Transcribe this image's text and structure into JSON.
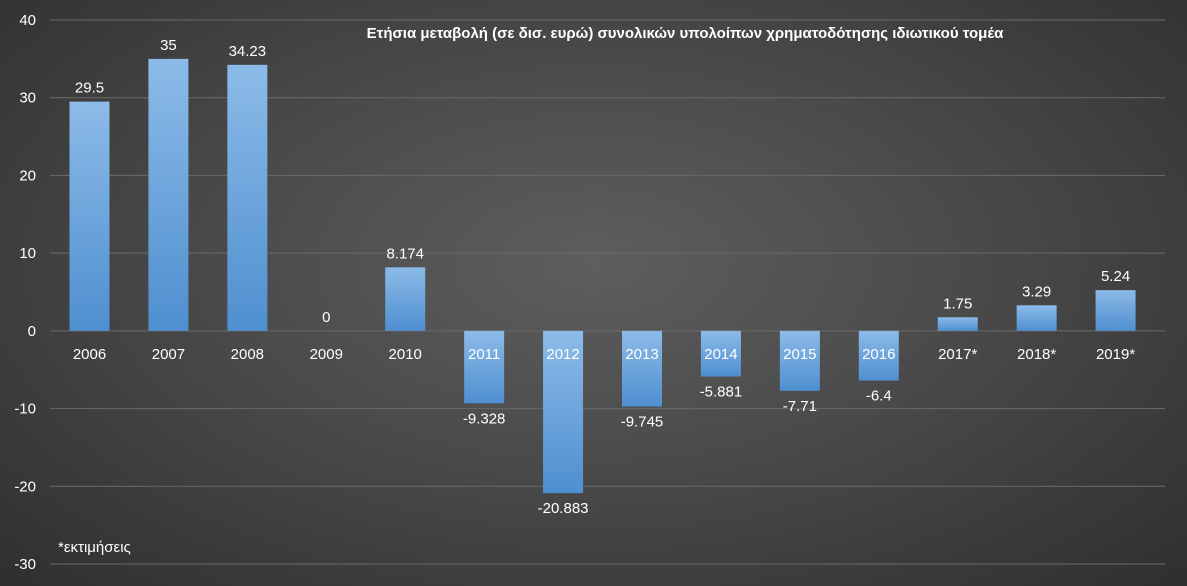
{
  "chart_data": {
    "type": "bar",
    "title": "Ετήσια μεταβολή (σε δισ. ευρώ) συνολικών υπολοίπων χρηματοδότησης ιδιωτικού τομέα",
    "categories": [
      "2006",
      "2007",
      "2008",
      "2009",
      "2010",
      "2011",
      "2012",
      "2013",
      "2014",
      "2015",
      "2016",
      "2017*",
      "2018*",
      "2019*"
    ],
    "values": [
      29.5,
      35,
      34.23,
      0,
      8.174,
      -9.328,
      -20.883,
      -9.745,
      -5.881,
      -7.71,
      -6.4,
      1.75,
      3.29,
      5.24
    ],
    "data_labels": [
      "29.5",
      "35",
      "34.23",
      "0",
      "8.174",
      "-9.328",
      "-20.883",
      "-9.745",
      "-5.881",
      "-7.71",
      "-6.4",
      "1.75",
      "3.29",
      "5.24"
    ],
    "ylim": [
      -30,
      40
    ],
    "yticks": [
      40,
      30,
      20,
      10,
      0,
      -10,
      -20,
      -30
    ],
    "grid": true,
    "xlabel": "",
    "ylabel": "",
    "bar_color": "#5b9bd5",
    "bar_color_light": "#8cbbe8",
    "footnote": "*εκτιμήσεις"
  }
}
